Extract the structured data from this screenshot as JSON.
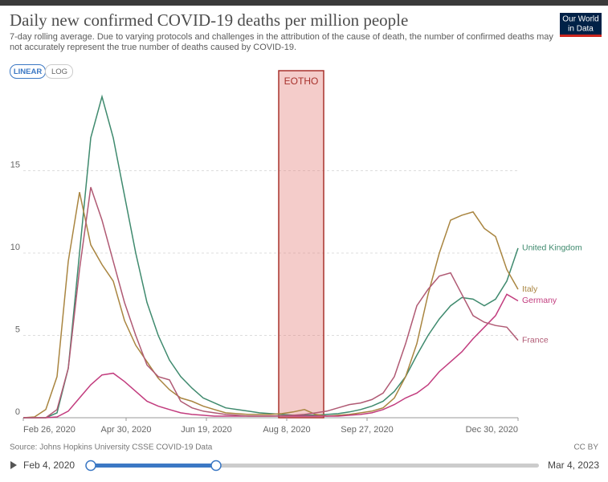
{
  "chart_data": {
    "type": "line",
    "title": "Daily new confirmed COVID-19 deaths per million people",
    "subtitle": "7-day rolling average. Due to varying protocols and challenges in the attribution of the cause of death, the number of confirmed deaths may not accurately represent the true number of deaths caused by COVID-19.",
    "scale_buttons": [
      "LINEAR",
      "LOG"
    ],
    "logo": [
      "Our World",
      "in Data"
    ],
    "source": "Source: Johns Hopkins University CSSE COVID-19 Data",
    "license": "CC BY",
    "timeline": {
      "start": "Feb 4, 2020",
      "end": "Mar 4, 2023"
    },
    "annotation": {
      "label": "EOTHO",
      "start": "2020-08-03",
      "end": "2020-08-31"
    },
    "x": [
      "2020-02-26",
      "2020-03-04",
      "2020-03-11",
      "2020-03-18",
      "2020-03-25",
      "2020-04-01",
      "2020-04-08",
      "2020-04-15",
      "2020-04-22",
      "2020-04-29",
      "2020-05-06",
      "2020-05-13",
      "2020-05-20",
      "2020-05-27",
      "2020-06-03",
      "2020-06-10",
      "2020-06-17",
      "2020-06-24",
      "2020-07-01",
      "2020-07-08",
      "2020-07-15",
      "2020-07-22",
      "2020-07-29",
      "2020-08-05",
      "2020-08-12",
      "2020-08-19",
      "2020-08-26",
      "2020-09-02",
      "2020-09-09",
      "2020-09-16",
      "2020-09-23",
      "2020-09-30",
      "2020-10-07",
      "2020-10-14",
      "2020-10-21",
      "2020-10-28",
      "2020-11-04",
      "2020-11-11",
      "2020-11-18",
      "2020-11-25",
      "2020-12-02",
      "2020-12-09",
      "2020-12-16",
      "2020-12-23",
      "2020-12-30"
    ],
    "series": [
      {
        "name": "United Kingdom",
        "color": "#3f8a6e",
        "values": [
          0,
          0,
          0,
          0.3,
          3,
          10,
          17,
          19.5,
          17,
          13.5,
          10,
          7,
          5,
          3.5,
          2.5,
          1.8,
          1.2,
          0.9,
          0.6,
          0.5,
          0.4,
          0.3,
          0.25,
          0.2,
          0.15,
          0.15,
          0.15,
          0.2,
          0.25,
          0.35,
          0.5,
          0.7,
          1.0,
          1.6,
          2.5,
          3.8,
          5.0,
          6.0,
          6.8,
          7.3,
          7.2,
          6.8,
          7.2,
          8.3,
          10.3
        ]
      },
      {
        "name": "Italy",
        "color": "#a98540",
        "values": [
          0,
          0.05,
          0.5,
          2.5,
          9.5,
          13.7,
          10.5,
          9.3,
          8.3,
          5.9,
          4.4,
          3.4,
          2.4,
          1.7,
          1.2,
          1.0,
          0.7,
          0.5,
          0.3,
          0.25,
          0.2,
          0.2,
          0.2,
          0.25,
          0.35,
          0.5,
          0.2,
          0.1,
          0.15,
          0.2,
          0.3,
          0.4,
          0.6,
          1.2,
          2.5,
          4.5,
          7.5,
          10,
          12,
          12.3,
          12.5,
          11.5,
          11,
          9,
          7.8
        ]
      },
      {
        "name": "Germany",
        "color": "#c23c7e",
        "values": [
          0,
          0,
          0,
          0.05,
          0.4,
          1.2,
          2,
          2.6,
          2.7,
          2.2,
          1.6,
          1.0,
          0.7,
          0.5,
          0.3,
          0.2,
          0.15,
          0.1,
          0.1,
          0.1,
          0.1,
          0.1,
          0.1,
          0.1,
          0.1,
          0.1,
          0.1,
          0.1,
          0.1,
          0.15,
          0.2,
          0.3,
          0.5,
          0.8,
          1.2,
          1.5,
          2,
          2.8,
          3.4,
          4,
          4.8,
          5.5,
          6.2,
          7.5,
          7.1
        ]
      },
      {
        "name": "France",
        "color": "#b05a74",
        "values": [
          0,
          0,
          0,
          0.5,
          3,
          9,
          14,
          12,
          9.5,
          7,
          5,
          3.2,
          2.5,
          2.3,
          1,
          0.6,
          0.4,
          0.3,
          0.2,
          0.15,
          0.1,
          0.1,
          0.1,
          0.12,
          0.15,
          0.2,
          0.3,
          0.4,
          0.6,
          0.8,
          0.9,
          1.1,
          1.5,
          2.5,
          4.5,
          6.8,
          7.8,
          8.6,
          8.8,
          7.5,
          6.2,
          5.8,
          5.6,
          5.5,
          4.7
        ]
      }
    ],
    "xlim": [
      "2020-02-26",
      "2020-12-30"
    ],
    "xticks": [
      {
        "value": "2020-02-26",
        "label": "Feb 26, 2020"
      },
      {
        "value": "2020-04-30",
        "label": "Apr 30, 2020"
      },
      {
        "value": "2020-06-19",
        "label": "Jun 19, 2020"
      },
      {
        "value": "2020-08-08",
        "label": "Aug 8, 2020"
      },
      {
        "value": "2020-09-27",
        "label": "Sep 27, 2020"
      },
      {
        "value": "2020-12-30",
        "label": "Dec 30, 2020"
      }
    ],
    "ylim": [
      0,
      20
    ],
    "yticks": [
      0,
      5,
      10,
      15
    ],
    "grid": true
  }
}
